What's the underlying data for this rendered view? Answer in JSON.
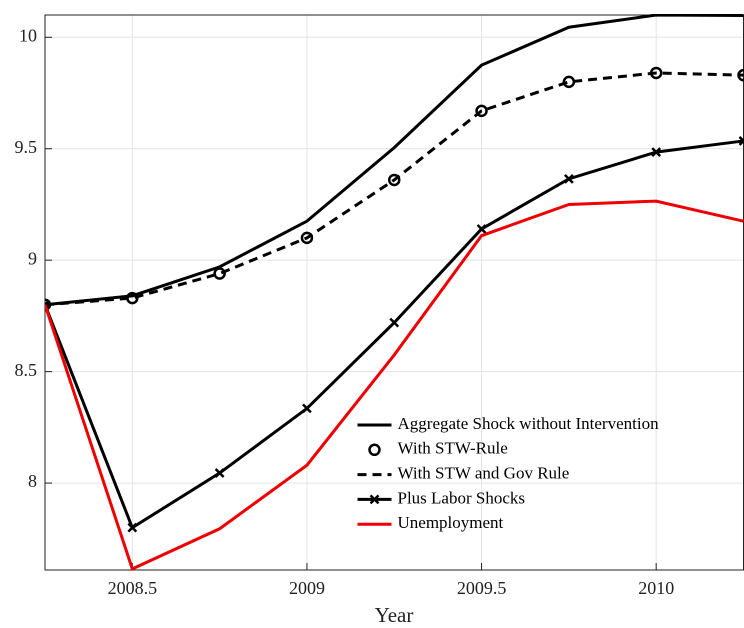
{
  "chart_data": {
    "type": "line",
    "x_label": "Year",
    "x": [
      2008.25,
      2008.5,
      2008.75,
      2009,
      2009.25,
      2009.5,
      2009.75,
      2010,
      2010.25
    ],
    "series": [
      {
        "name": "Aggregate Shock without Intervention",
        "color": "#000000",
        "line_style": "solid",
        "values": [
          8.8,
          8.84,
          8.97,
          9.175,
          9.505,
          9.875,
          10.045,
          10.1,
          10.098
        ]
      },
      {
        "name": "With STW-Rule",
        "color": "#000000",
        "line_style": "none",
        "marker": "circle",
        "values": [
          8.8,
          8.83,
          8.94,
          9.1,
          9.36,
          9.67,
          9.8,
          9.84,
          9.83
        ]
      },
      {
        "name": "With STW and Gov Rule",
        "color": "#000000",
        "line_style": "dashed",
        "values": [
          8.8,
          8.83,
          8.94,
          9.1,
          9.36,
          9.67,
          9.8,
          9.84,
          9.83
        ]
      },
      {
        "name": "Plus Labor Shocks",
        "color": "#000000",
        "line_style": "solid",
        "marker": "x",
        "values": [
          8.8,
          7.8,
          8.045,
          8.335,
          8.72,
          9.14,
          9.365,
          9.485,
          9.535
        ]
      },
      {
        "name": "Unemployment",
        "color": "#ee0000",
        "line_style": "solid",
        "values": [
          8.8,
          7.615,
          7.795,
          8.08,
          8.575,
          9.11,
          9.25,
          9.265,
          9.175
        ]
      }
    ],
    "xlim": [
      2008.25,
      2010.25
    ],
    "xticks": [
      2008.5,
      2009,
      2009.5,
      2010
    ],
    "ylim": [
      7.61,
      10.1
    ],
    "yticks": [
      8,
      8.5,
      9,
      9.5,
      10
    ],
    "grid": true,
    "legend": "southeast"
  }
}
